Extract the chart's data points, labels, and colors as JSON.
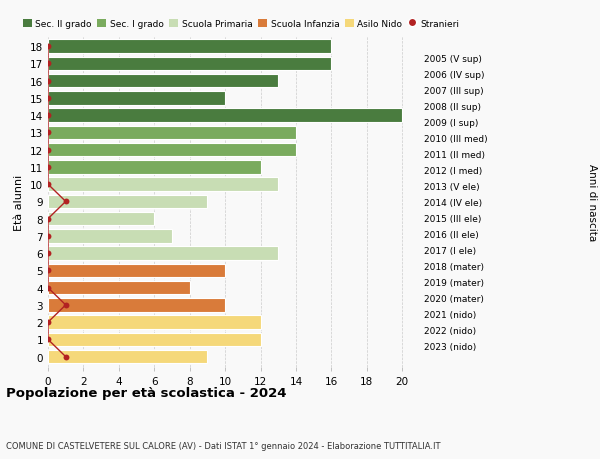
{
  "ages": [
    18,
    17,
    16,
    15,
    14,
    13,
    12,
    11,
    10,
    9,
    8,
    7,
    6,
    5,
    4,
    3,
    2,
    1,
    0
  ],
  "values": [
    16,
    16,
    13,
    10,
    20,
    14,
    14,
    12,
    13,
    9,
    6,
    7,
    13,
    10,
    8,
    10,
    12,
    12,
    9
  ],
  "right_labels": [
    "2005 (V sup)",
    "2006 (IV sup)",
    "2007 (III sup)",
    "2008 (II sup)",
    "2009 (I sup)",
    "2010 (III med)",
    "2011 (II med)",
    "2012 (I med)",
    "2013 (V ele)",
    "2014 (IV ele)",
    "2015 (III ele)",
    "2016 (II ele)",
    "2017 (I ele)",
    "2018 (mater)",
    "2019 (mater)",
    "2020 (mater)",
    "2021 (nido)",
    "2022 (nido)",
    "2023 (nido)"
  ],
  "bar_colors": [
    "#4a7c3f",
    "#4a7c3f",
    "#4a7c3f",
    "#4a7c3f",
    "#4a7c3f",
    "#7aab5e",
    "#7aab5e",
    "#7aab5e",
    "#c8ddb4",
    "#c8ddb4",
    "#c8ddb4",
    "#c8ddb4",
    "#c8ddb4",
    "#d97b3a",
    "#d97b3a",
    "#d97b3a",
    "#f5d87a",
    "#f5d87a",
    "#f5d87a"
  ],
  "legend_labels": [
    "Sec. II grado",
    "Sec. I grado",
    "Scuola Primaria",
    "Scuola Infanzia",
    "Asilo Nido",
    "Stranieri"
  ],
  "legend_colors": [
    "#4a7c3f",
    "#7aab5e",
    "#c8ddb4",
    "#d97b3a",
    "#f5d87a",
    "#b22222"
  ],
  "stranieri_color": "#b22222",
  "stranieri_x": [
    0,
    0,
    0,
    0,
    0,
    0,
    0,
    0,
    0,
    1,
    0,
    0,
    0,
    0,
    0,
    1,
    0,
    0,
    1
  ],
  "title": "Popolazione per età scolastica - 2024",
  "subtitle": "COMUNE DI CASTELVETERE SUL CALORE (AV) - Dati ISTAT 1° gennaio 2024 - Elaborazione TUTTITALIA.IT",
  "ylabel": "Età alunni",
  "right_ylabel": "Anni di nascita",
  "xlim": [
    0,
    21
  ],
  "xticks": [
    0,
    2,
    4,
    6,
    8,
    10,
    12,
    14,
    16,
    18,
    20
  ],
  "background_color": "#f9f9f9",
  "bar_height": 0.78
}
